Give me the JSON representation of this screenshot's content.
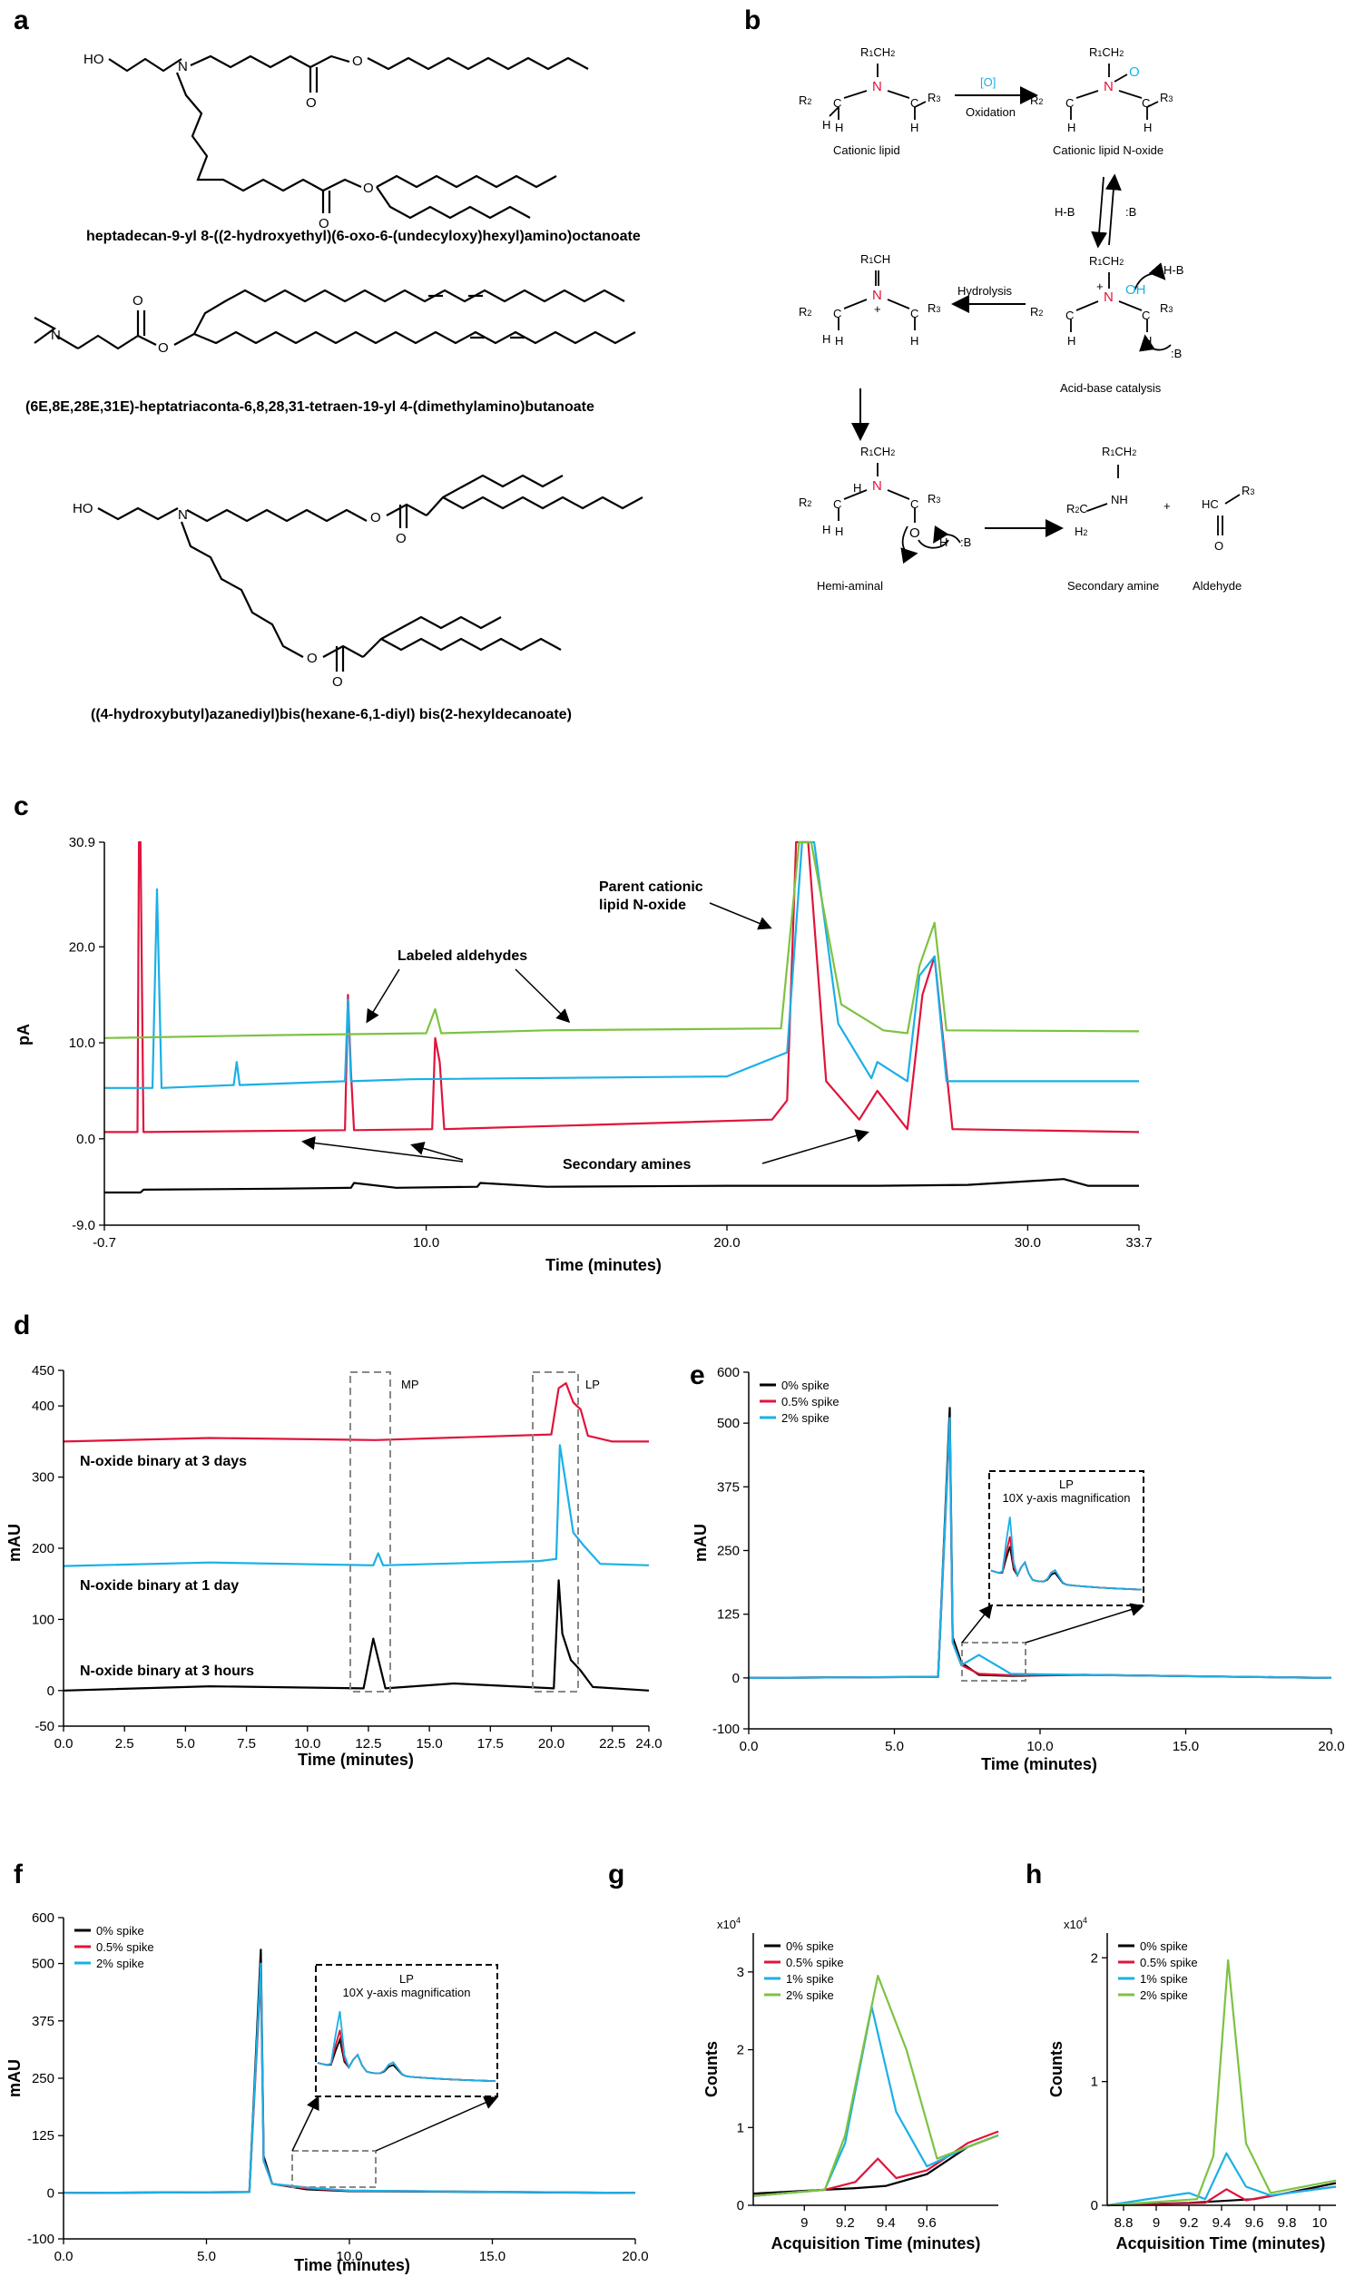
{
  "panels": {
    "a": "a",
    "b": "b",
    "c": "c",
    "d": "d",
    "e": "e",
    "f": "f",
    "g": "g",
    "h": "h"
  },
  "panel_a": {
    "names": [
      "heptadecan-9-yl 8-((2-hydroxyethyl)(6-oxo-6-(undecyloxy)hexyl)amino)octanoate",
      "(6E,8E,28E,31E)-heptatriaconta-6,8,28,31-tetraen-19-yl 4-(dimethylamino)butanoate",
      "((4-hydroxybutyl)azanediyl)bis(hexane-6,1-diyl) bis(2-hexyldecanoate)"
    ],
    "atoms": {
      "HO": "HO",
      "N": "N",
      "O": "O"
    }
  },
  "panel_b": {
    "labels": {
      "cationic_lipid": "Cationic lipid",
      "n_oxide": "Cationic lipid N-oxide",
      "oxidation": "Oxidation",
      "oxidant": "[O]",
      "hydrolysis": "Hydrolysis",
      "acid_base": "Acid-base catalysis",
      "hemi_aminal": "Hemi-aminal",
      "secondary_amine": "Secondary amine",
      "aldehyde": "Aldehyde",
      "plus": "+",
      "hb": "H-B",
      "b": ":B"
    }
  },
  "chart_data": [
    {
      "panel": "c",
      "type": "line",
      "ylabel": "pA",
      "xlabel": "Time (minutes)",
      "xlim": [
        -0.7,
        33.7
      ],
      "ylim": [
        -9.0,
        30.9
      ],
      "xticks": [
        "-0.7",
        "10.0",
        "20.0",
        "30.0",
        "33.7"
      ],
      "yticks": [
        "30.9",
        "20.0",
        "10.0",
        "0.0",
        "-9.0"
      ],
      "annotations": [
        "Parent cationic lipid N-oxide",
        "Labeled aldehydes",
        "Secondary amines"
      ],
      "colors": [
        "#000000",
        "#e0143c",
        "#1ab0e6",
        "#7dc242"
      ],
      "series": [
        {
          "color": "#000000",
          "baseline": -5.3,
          "x": [
            -0.7,
            0.5,
            0.6,
            5,
            7.5,
            7.6,
            9,
            11.7,
            11.8,
            14,
            20,
            25,
            28,
            31.2,
            32,
            33.7
          ],
          "y": [
            -5.6,
            -5.6,
            -5.3,
            -5.2,
            -5.1,
            -4.6,
            -5.1,
            -5,
            -4.6,
            -5.0,
            -4.9,
            -4.9,
            -4.8,
            -4.2,
            -4.9,
            -4.9
          ]
        },
        {
          "color": "#e0143c",
          "baseline": 0.7,
          "x": [
            -0.7,
            0.4,
            0.45,
            0.5,
            0.6,
            7.3,
            7.4,
            7.5,
            7.6,
            10.2,
            10.3,
            10.45,
            10.6,
            21.5,
            22,
            22.3,
            22.7,
            23.3,
            24.4,
            25,
            26,
            26.5,
            26.9,
            27.5,
            33.7
          ],
          "y": [
            0.7,
            0.7,
            30.9,
            30.9,
            0.7,
            0.9,
            15,
            7,
            0.9,
            1.0,
            10.5,
            8,
            1.0,
            2,
            4,
            30.9,
            30.9,
            6,
            2,
            5,
            1,
            15,
            19,
            1,
            0.7
          ]
        },
        {
          "color": "#1ab0e6",
          "baseline": 5.3,
          "x": [
            -0.7,
            0.9,
            1.05,
            1.2,
            3.6,
            3.7,
            3.8,
            7.3,
            7.4,
            7.5,
            9.5,
            20,
            22,
            22.5,
            22.9,
            23.7,
            24.8,
            25,
            26,
            26.4,
            26.9,
            27.3,
            33.7
          ],
          "y": [
            5.3,
            5.3,
            26,
            5.3,
            5.6,
            8,
            5.6,
            6,
            14.5,
            6,
            6.2,
            6.5,
            9,
            30.9,
            30.9,
            12,
            6.3,
            8,
            6,
            17,
            19,
            6,
            6
          ]
        },
        {
          "color": "#7dc242",
          "baseline": 10.5,
          "x": [
            -0.7,
            5,
            10,
            10.3,
            10.5,
            14,
            21.8,
            22.4,
            22.8,
            23.8,
            25.2,
            26,
            26.4,
            26.9,
            27.3,
            33.7
          ],
          "y": [
            10.5,
            10.8,
            11,
            13.5,
            11,
            11.3,
            11.5,
            30.9,
            30.9,
            14,
            11.3,
            11,
            18,
            22.5,
            11.3,
            11.2
          ]
        }
      ]
    },
    {
      "panel": "d",
      "type": "line",
      "ylabel": "mAU",
      "xlabel": "Time (minutes)",
      "xlim": [
        0,
        24
      ],
      "ylim": [
        -50,
        450
      ],
      "xticks": [
        "0.0",
        "2.5",
        "5.0",
        "7.5",
        "10.0",
        "12.5",
        "15.0",
        "17.5",
        "20.0",
        "22.5",
        "24.0"
      ],
      "yticks": [
        "450",
        "400",
        "300",
        "200",
        "100",
        "0",
        "-50"
      ],
      "boxes": [
        "MP",
        "LP"
      ],
      "series": [
        {
          "name": "N-oxide binary at 3 days",
          "color": "#e0143c",
          "baseline": 350,
          "x": [
            0,
            6,
            12.8,
            20,
            20.3,
            20.6,
            20.9,
            21.2,
            21.5,
            22.5,
            24
          ],
          "y": [
            350,
            355,
            352,
            360,
            425,
            432,
            405,
            395,
            358,
            350,
            350
          ]
        },
        {
          "name": "N-oxide binary at 1 day",
          "color": "#1ab0e6",
          "baseline": 175,
          "x": [
            0,
            6,
            12.7,
            12.9,
            13.1,
            19.5,
            20.2,
            20.35,
            20.6,
            20.9,
            21.3,
            22,
            24
          ],
          "y": [
            175,
            180,
            176,
            193,
            176,
            182,
            185,
            345,
            290,
            222,
            205,
            178,
            176
          ]
        },
        {
          "name": "N-oxide binary at 3 hours",
          "color": "#000000",
          "baseline": 0,
          "x": [
            0,
            6,
            12.3,
            12.7,
            13.2,
            16,
            20.1,
            20.3,
            20.45,
            20.8,
            21.2,
            21.7,
            24
          ],
          "y": [
            0,
            6,
            3,
            73,
            3,
            10,
            3,
            155,
            80,
            43,
            28,
            5,
            0
          ]
        }
      ]
    },
    {
      "panel": "e",
      "type": "line",
      "ylabel": "mAU",
      "xlabel": "Time (minutes)",
      "xlim": [
        0,
        20
      ],
      "ylim": [
        -100,
        600
      ],
      "xticks": [
        "0.0",
        "5.0",
        "10.0",
        "15.0",
        "20.0"
      ],
      "yticks": [
        "600",
        "500",
        "375",
        "250",
        "125",
        "0",
        "-100"
      ],
      "inset": {
        "title": "LP",
        "subtitle": "10X y-axis magnification"
      },
      "series": [
        {
          "name": "0% spike",
          "color": "#000000",
          "x": [
            0,
            6.5,
            6.9,
            7.0,
            7.3,
            7.9,
            9,
            11.5,
            20
          ],
          "y": [
            0,
            2,
            530,
            80,
            30,
            6,
            4,
            6,
            0
          ]
        },
        {
          "name": "0.5% spike",
          "color": "#e0143c",
          "x": [
            0,
            6.5,
            6.9,
            7.0,
            7.3,
            7.9,
            9,
            11.5,
            20
          ],
          "y": [
            0,
            2,
            500,
            70,
            25,
            8,
            5,
            6,
            0
          ]
        },
        {
          "name": "2% spike",
          "color": "#1ab0e6",
          "x": [
            0,
            6.5,
            6.9,
            7.0,
            7.3,
            7.9,
            9,
            11.5,
            20
          ],
          "y": [
            0,
            2,
            510,
            70,
            25,
            45,
            8,
            6,
            0
          ]
        }
      ]
    },
    {
      "panel": "f",
      "type": "line",
      "ylabel": "mAU",
      "xlabel": "Time (minutes)",
      "xlim": [
        0,
        20
      ],
      "ylim": [
        -100,
        600
      ],
      "xticks": [
        "0.0",
        "5.0",
        "10.0",
        "15.0",
        "20.0"
      ],
      "yticks": [
        "600",
        "500",
        "375",
        "250",
        "125",
        "0",
        "-100"
      ],
      "inset": {
        "title": "LP",
        "subtitle": "10X y-axis magnification"
      },
      "series": [
        {
          "name": "0% spike",
          "color": "#000000",
          "x": [
            0,
            6.5,
            6.9,
            7.0,
            7.3,
            8.5,
            10,
            20
          ],
          "y": [
            0,
            2,
            530,
            80,
            20,
            8,
            4,
            0
          ]
        },
        {
          "name": "0.5% spike",
          "color": "#e0143c",
          "x": [
            0,
            6.5,
            6.9,
            7.0,
            7.3,
            8.5,
            10,
            20
          ],
          "y": [
            0,
            2,
            480,
            70,
            20,
            10,
            5,
            0
          ]
        },
        {
          "name": "2% spike",
          "color": "#1ab0e6",
          "x": [
            0,
            6.5,
            6.9,
            7.0,
            7.3,
            8.5,
            10,
            20
          ],
          "y": [
            0,
            2,
            500,
            70,
            20,
            12,
            5,
            0
          ]
        }
      ]
    },
    {
      "panel": "g",
      "type": "line",
      "ylabel": "Counts",
      "xlabel": "Acquisition Time (minutes)",
      "xlim": [
        8.75,
        9.95
      ],
      "ylim": [
        0,
        3.5
      ],
      "multiplier": "x10",
      "multiplier_exp": "4",
      "xticks": [
        "9",
        "9.2",
        "9.4",
        "9.6"
      ],
      "yticks": [
        "3",
        "2",
        "1",
        "0"
      ],
      "series": [
        {
          "name": "0% spike",
          "color": "#000000",
          "x": [
            8.75,
            9.1,
            9.25,
            9.4,
            9.6,
            9.8,
            9.95
          ],
          "y": [
            0.15,
            0.2,
            0.22,
            0.25,
            0.4,
            0.75,
            0.9
          ]
        },
        {
          "name": "0.5% spike",
          "color": "#e0143c",
          "x": [
            8.75,
            9.1,
            9.25,
            9.36,
            9.45,
            9.6,
            9.8,
            9.95
          ],
          "y": [
            0.12,
            0.2,
            0.3,
            0.6,
            0.35,
            0.45,
            0.8,
            0.95
          ]
        },
        {
          "name": "1% spike",
          "color": "#1ab0e6",
          "x": [
            8.75,
            9.1,
            9.2,
            9.33,
            9.45,
            9.6,
            9.8,
            9.95
          ],
          "y": [
            0.12,
            0.2,
            0.8,
            2.55,
            1.2,
            0.5,
            0.75,
            0.9
          ]
        },
        {
          "name": "2% spike",
          "color": "#7dc242",
          "x": [
            8.75,
            9.1,
            9.2,
            9.36,
            9.5,
            9.65,
            9.8,
            9.95
          ],
          "y": [
            0.12,
            0.2,
            0.9,
            2.95,
            2.0,
            0.6,
            0.75,
            0.9
          ]
        }
      ]
    },
    {
      "panel": "h",
      "type": "line",
      "ylabel": "Counts",
      "xlabel": "Acquisition Time (minutes)",
      "xlim": [
        8.7,
        10.1
      ],
      "ylim": [
        0,
        2.2
      ],
      "multiplier": "x10",
      "multiplier_exp": "4",
      "xticks": [
        "8.8",
        "9",
        "9.2",
        "9.4",
        "9.6",
        "9.8",
        "10"
      ],
      "yticks": [
        "2",
        "1",
        "0"
      ],
      "series": [
        {
          "name": "0% spike",
          "color": "#000000",
          "x": [
            8.7,
            9.2,
            9.6,
            9.8,
            10.1
          ],
          "y": [
            0,
            0.02,
            0.05,
            0.1,
            0.18
          ]
        },
        {
          "name": "0.5% spike",
          "color": "#e0143c",
          "x": [
            8.7,
            9.3,
            9.43,
            9.55,
            9.8,
            10.1
          ],
          "y": [
            0,
            0.02,
            0.13,
            0.04,
            0.1,
            0.15
          ]
        },
        {
          "name": "1% spike",
          "color": "#1ab0e6",
          "x": [
            8.7,
            9.2,
            9.3,
            9.43,
            9.55,
            9.7,
            10.1
          ],
          "y": [
            0,
            0.1,
            0.05,
            0.42,
            0.15,
            0.08,
            0.15
          ]
        },
        {
          "name": "2% spike",
          "color": "#7dc242",
          "x": [
            8.7,
            9.25,
            9.35,
            9.44,
            9.55,
            9.7,
            10.1
          ],
          "y": [
            0,
            0.05,
            0.4,
            1.98,
            0.5,
            0.1,
            0.2
          ]
        }
      ]
    }
  ]
}
